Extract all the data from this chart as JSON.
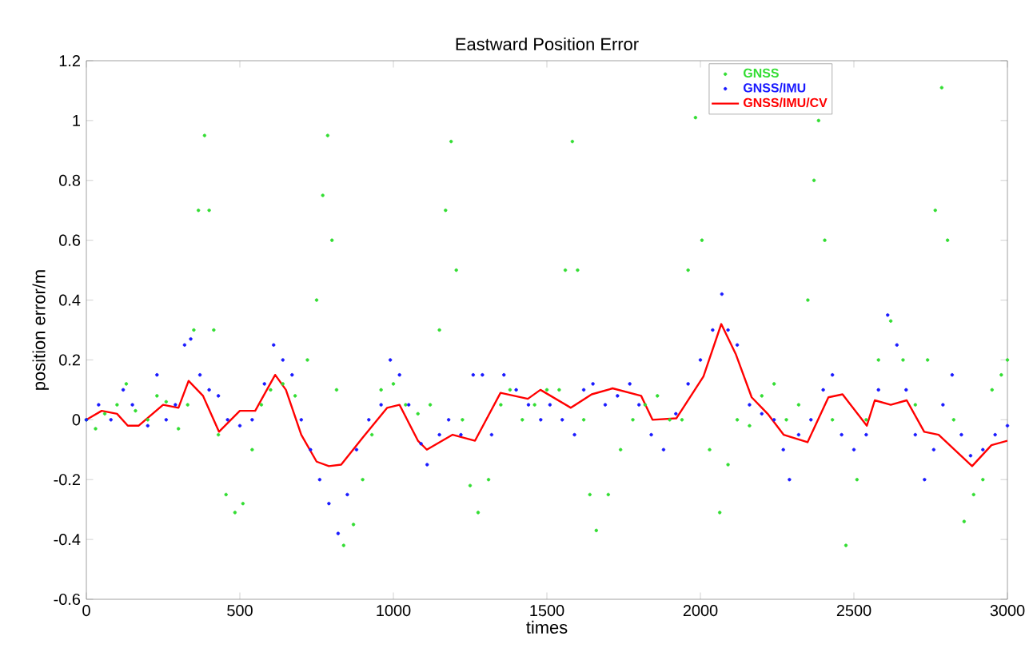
{
  "chart_data": {
    "type": "scatter",
    "title": "Eastward Position Error",
    "xlabel": "times",
    "ylabel": "position error/m",
    "xlim": [
      0,
      3000
    ],
    "ylim": [
      -0.6,
      1.2
    ],
    "xticks": [
      0,
      500,
      1000,
      1500,
      2000,
      2500,
      3000
    ],
    "yticks": [
      -0.6,
      -0.4,
      -0.2,
      0,
      0.2,
      0.4,
      0.6,
      0.8,
      1,
      1.2
    ],
    "grid": false,
    "legend": "top right",
    "series": [
      {
        "name": "GNSS",
        "type": "scatter",
        "marker": "circle",
        "color": "#33dd33",
        "x": [
          0,
          30,
          60,
          100,
          130,
          160,
          200,
          230,
          260,
          300,
          330,
          350,
          365,
          385,
          400,
          415,
          430,
          455,
          484,
          510,
          540,
          570,
          600,
          640,
          680,
          720,
          750,
          770,
          786,
          800,
          815,
          838,
          870,
          900,
          930,
          960,
          1000,
          1040,
          1080,
          1120,
          1150,
          1170,
          1188,
          1205,
          1225,
          1250,
          1276,
          1310,
          1350,
          1380,
          1420,
          1460,
          1500,
          1540,
          1560,
          1583,
          1600,
          1620,
          1640,
          1661,
          1700,
          1740,
          1780,
          1820,
          1860,
          1900,
          1940,
          1960,
          1984,
          2005,
          2030,
          2063,
          2090,
          2120,
          2160,
          2200,
          2240,
          2280,
          2320,
          2350,
          2370,
          2385,
          2405,
          2430,
          2474,
          2510,
          2540,
          2580,
          2620,
          2660,
          2700,
          2740,
          2765,
          2786,
          2805,
          2825,
          2859,
          2890,
          2920,
          2950,
          2980,
          3000
        ],
        "values": [
          0.0,
          -0.03,
          0.02,
          0.05,
          0.12,
          0.03,
          0.0,
          0.08,
          0.06,
          -0.03,
          0.05,
          0.3,
          0.7,
          0.95,
          0.7,
          0.3,
          -0.05,
          -0.25,
          -0.31,
          -0.28,
          -0.1,
          0.05,
          0.1,
          0.12,
          0.08,
          0.2,
          0.4,
          0.75,
          0.95,
          0.6,
          0.1,
          -0.42,
          -0.35,
          -0.2,
          -0.05,
          0.1,
          0.12,
          0.05,
          0.02,
          0.05,
          0.3,
          0.7,
          0.93,
          0.5,
          0.0,
          -0.22,
          -0.31,
          -0.2,
          0.05,
          0.1,
          0.0,
          0.05,
          0.1,
          0.1,
          0.5,
          0.93,
          0.5,
          0.0,
          -0.25,
          -0.37,
          -0.25,
          -0.1,
          0.0,
          0.05,
          0.08,
          0.0,
          0.0,
          0.5,
          1.01,
          0.6,
          -0.1,
          -0.31,
          -0.15,
          0.0,
          -0.02,
          0.08,
          0.12,
          0.0,
          0.05,
          0.4,
          0.8,
          1.0,
          0.6,
          0.0,
          -0.42,
          -0.2,
          0.0,
          0.2,
          0.33,
          0.2,
          0.05,
          0.2,
          0.7,
          1.11,
          0.6,
          0.0,
          -0.34,
          -0.25,
          -0.2,
          0.1,
          0.15,
          0.2
        ]
      },
      {
        "name": "GNSS/IMU",
        "type": "scatter",
        "marker": "circle",
        "color": "#1a1aff",
        "x": [
          0,
          40,
          80,
          120,
          150,
          200,
          230,
          260,
          290,
          320,
          340,
          370,
          400,
          430,
          460,
          500,
          540,
          580,
          610,
          640,
          670,
          700,
          730,
          760,
          790,
          820,
          850,
          880,
          920,
          960,
          990,
          1020,
          1050,
          1090,
          1110,
          1150,
          1180,
          1220,
          1260,
          1290,
          1320,
          1360,
          1400,
          1440,
          1480,
          1510,
          1550,
          1590,
          1620,
          1650,
          1690,
          1730,
          1770,
          1800,
          1840,
          1880,
          1920,
          1960,
          2000,
          2040,
          2070,
          2090,
          2120,
          2160,
          2200,
          2240,
          2270,
          2290,
          2320,
          2360,
          2400,
          2430,
          2460,
          2500,
          2540,
          2580,
          2610,
          2640,
          2670,
          2700,
          2730,
          2760,
          2790,
          2820,
          2850,
          2880,
          2920,
          2960,
          3000
        ],
        "values": [
          0.0,
          0.05,
          0.0,
          0.1,
          0.05,
          -0.02,
          0.15,
          0.0,
          0.05,
          0.25,
          0.27,
          0.15,
          0.1,
          0.08,
          0.0,
          -0.02,
          0.0,
          0.12,
          0.25,
          0.2,
          0.15,
          0.0,
          -0.1,
          -0.2,
          -0.28,
          -0.38,
          -0.25,
          -0.1,
          0.0,
          0.05,
          0.2,
          0.15,
          0.05,
          -0.08,
          -0.15,
          -0.05,
          0.0,
          -0.05,
          0.15,
          0.15,
          -0.05,
          0.15,
          0.1,
          0.05,
          0.0,
          0.05,
          0.0,
          -0.05,
          0.1,
          0.12,
          0.05,
          0.08,
          0.12,
          0.05,
          -0.05,
          -0.1,
          0.02,
          0.12,
          0.2,
          0.3,
          0.42,
          0.3,
          0.25,
          0.05,
          0.02,
          0.0,
          -0.1,
          -0.2,
          -0.05,
          0.0,
          0.1,
          0.15,
          -0.05,
          -0.1,
          -0.05,
          0.1,
          0.35,
          0.25,
          0.1,
          -0.05,
          -0.2,
          -0.1,
          0.05,
          0.15,
          -0.05,
          -0.12,
          -0.1,
          -0.05,
          -0.02
        ]
      },
      {
        "name": "GNSS/IMU/CV",
        "type": "line",
        "line_style": "solid",
        "color": "#ff0000",
        "x": [
          0,
          50,
          100,
          135,
          170,
          250,
          300,
          333,
          380,
          432,
          500,
          550,
          615,
          650,
          700,
          750,
          790,
          830,
          900,
          980,
          1020,
          1080,
          1109,
          1193,
          1266,
          1349,
          1438,
          1479,
          1578,
          1646,
          1714,
          1807,
          1844,
          1922,
          2010,
          2068,
          2115,
          2167,
          2219,
          2271,
          2349,
          2417,
          2463,
          2542,
          2568,
          2620,
          2672,
          2729,
          2776,
          2828,
          2885,
          2948,
          3000
        ],
        "values": [
          0.0,
          0.03,
          0.02,
          -0.02,
          -0.02,
          0.05,
          0.04,
          0.13,
          0.08,
          -0.04,
          0.03,
          0.03,
          0.15,
          0.1,
          -0.05,
          -0.14,
          -0.155,
          -0.15,
          -0.06,
          0.04,
          0.05,
          -0.07,
          -0.1,
          -0.05,
          -0.07,
          0.09,
          0.07,
          0.1,
          0.04,
          0.085,
          0.105,
          0.08,
          0.0,
          0.005,
          0.145,
          0.32,
          0.22,
          0.075,
          0.02,
          -0.05,
          -0.075,
          0.075,
          0.085,
          -0.02,
          0.065,
          0.05,
          0.065,
          -0.04,
          -0.05,
          -0.1,
          -0.155,
          -0.085,
          -0.07
        ]
      }
    ]
  }
}
